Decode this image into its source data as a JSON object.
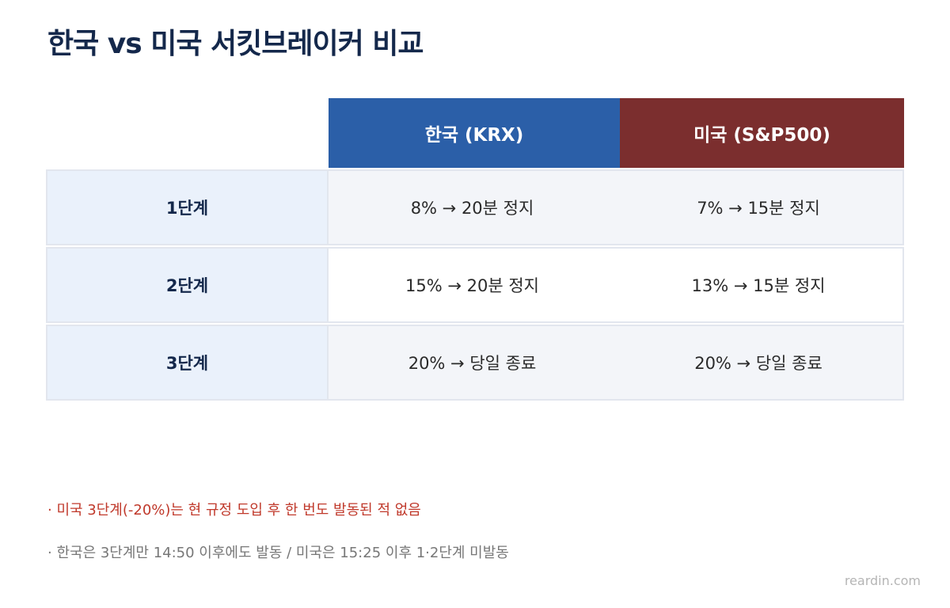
{
  "title": "한국 vs 미국 서킷브레이커 비교",
  "table": {
    "headers": {
      "korea": "한국 (KRX)",
      "us": "미국 (S&P500)"
    },
    "rows": [
      {
        "stage": "1단계",
        "korea": "8% → 20분 정지",
        "us": "7% → 15분 정지"
      },
      {
        "stage": "2단계",
        "korea": "15% → 20분 정지",
        "us": "13% → 15분 정지"
      },
      {
        "stage": "3단계",
        "korea": "20% → 당일 종료",
        "us": "20% → 당일 종료"
      }
    ]
  },
  "notes": [
    "· 미국 3단계(-20%)는 현 규정 도입 후 한 번도 발동된 적 없음",
    "· 한국은 3단계만 14:50 이후에도 발동 / 미국은 15:25 이후 1·2단계 미발동"
  ],
  "credit": "reardin.com",
  "colors": {
    "title": "#14284b",
    "korea_header": "#2b5fa8",
    "us_header": "#7b2e2e",
    "stage_bg": "#eaf1fb",
    "note_highlight": "#c0392b",
    "note_muted": "#777777"
  }
}
